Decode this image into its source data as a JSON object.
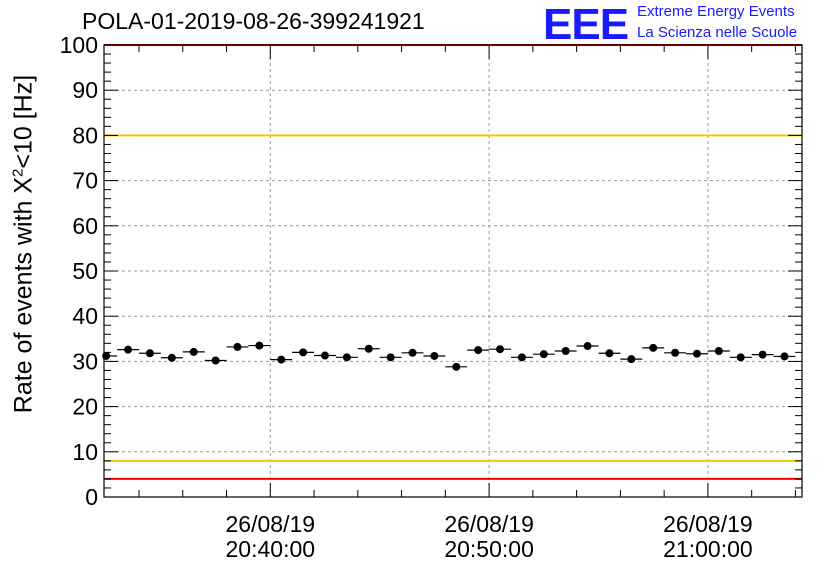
{
  "header": {
    "title": "POLA-01-2019-08-26-399241921",
    "logo_text": "EEE",
    "logo_line1": "Extreme Energy Events",
    "logo_line2": "La Scienza nelle Scuole"
  },
  "colors": {
    "axis": "#000000",
    "grid": "#9a9a9a",
    "red_line": "#ff0000",
    "yellow_line": "#f0c800",
    "logo": "#1a1aff",
    "marker": "#000000"
  },
  "chart_data": {
    "type": "scatter",
    "title": "POLA-01-2019-08-26-399241921",
    "ylabel_prefix": "Rate of events with X",
    "ylabel_sup": "2",
    "ylabel_suffix": "<10 [Hz]",
    "xlabel": "",
    "ylim": [
      0,
      100
    ],
    "yticks": [
      0,
      10,
      20,
      30,
      40,
      50,
      60,
      70,
      80,
      90,
      100
    ],
    "xlim_minutes": [
      -7.6,
      24.3
    ],
    "xticks": [
      {
        "minutes": 0,
        "date": "26/08/19",
        "time": "20:40:00"
      },
      {
        "minutes": 10,
        "date": "26/08/19",
        "time": "20:50:00"
      },
      {
        "minutes": 20,
        "date": "26/08/19",
        "time": "21:00:00"
      }
    ],
    "bin_width_minutes": 1,
    "grid": true,
    "reference_lines": [
      {
        "value": 100,
        "color": "red"
      },
      {
        "value": 80,
        "color": "yellow"
      },
      {
        "value": 8,
        "color": "yellow"
      },
      {
        "value": 4,
        "color": "red"
      }
    ],
    "series": [
      {
        "name": "rate",
        "x_minutes": [
          -7.5,
          -6.5,
          -5.5,
          -4.5,
          -3.5,
          -2.5,
          -1.5,
          -0.5,
          0.5,
          1.5,
          2.5,
          3.5,
          4.5,
          5.5,
          6.5,
          7.5,
          8.5,
          9.5,
          10.5,
          11.5,
          12.5,
          13.5,
          14.5,
          15.5,
          16.5,
          17.5,
          18.5,
          19.5,
          20.5,
          21.5,
          22.5,
          23.5
        ],
        "values": [
          31.2,
          32.6,
          31.8,
          30.8,
          32.1,
          30.2,
          33.2,
          33.5,
          30.4,
          32.0,
          31.3,
          30.9,
          32.8,
          30.9,
          31.9,
          31.2,
          28.8,
          32.5,
          32.7,
          30.9,
          31.6,
          32.3,
          33.4,
          31.8,
          30.5,
          33.0,
          31.9,
          31.7,
          32.3,
          30.9,
          31.5,
          31.1
        ]
      }
    ]
  }
}
